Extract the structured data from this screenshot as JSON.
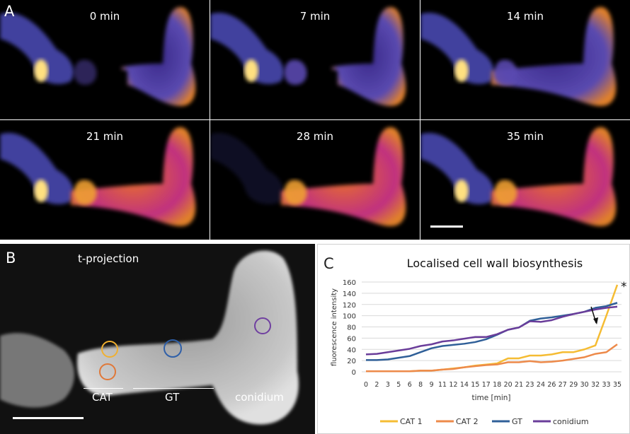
{
  "panel_a": {
    "label": "A",
    "frames": [
      "0 min",
      "7 min",
      "14 min",
      "21 min",
      "28 min",
      "35 min"
    ]
  },
  "panel_b": {
    "label": "B",
    "title": "t-projection",
    "region_labels": {
      "cat": "CAT",
      "gt": "GT",
      "conidium": "conidium"
    },
    "circle_colors": {
      "cat1": "#f0b030",
      "cat2": "#e07838",
      "gt": "#3060a8",
      "conidium": "#7040a0"
    }
  },
  "chart_data": {
    "type": "line",
    "panel_label": "C",
    "title": "Localised cell wall biosynthesis",
    "xlabel": "time [min]",
    "ylabel": "fluorescence intensity",
    "ylim": [
      0,
      160
    ],
    "yticks": [
      0,
      20,
      40,
      60,
      80,
      100,
      120,
      140,
      160
    ],
    "x": [
      0,
      2,
      3,
      5,
      6,
      8,
      9,
      11,
      12,
      14,
      15,
      17,
      18,
      20,
      21,
      23,
      24,
      26,
      27,
      29,
      30,
      32,
      33,
      35
    ],
    "xtick_labels": [
      "0",
      "2",
      "3",
      "5",
      "6",
      "8",
      "9",
      "11",
      "12",
      "14",
      "15",
      "17",
      "18",
      "20",
      "21",
      "23",
      "24",
      "26",
      "27",
      "29",
      "30",
      "32",
      "33",
      "35"
    ],
    "grid": true,
    "legend_position": "bottom",
    "annotations": {
      "asterisk": "*",
      "arrow_at_x": 32
    },
    "series": [
      {
        "name": "CAT 1",
        "color": "#f5bc33",
        "values": [
          1,
          1,
          1,
          1,
          1,
          2,
          2,
          4,
          6,
          8,
          11,
          13,
          15,
          24,
          24,
          29,
          29,
          31,
          35,
          35,
          40,
          47,
          100,
          155
        ]
      },
      {
        "name": "CAT 2",
        "color": "#ed8a4a",
        "values": [
          1,
          1,
          1,
          1,
          1,
          2,
          2,
          4,
          5,
          8,
          10,
          12,
          13,
          17,
          17,
          19,
          17,
          18,
          20,
          23,
          26,
          32,
          35,
          49
        ]
      },
      {
        "name": "GT",
        "color": "#2f5f98",
        "values": [
          21,
          21,
          22,
          25,
          28,
          35,
          42,
          46,
          48,
          50,
          53,
          58,
          66,
          75,
          79,
          91,
          95,
          97,
          100,
          103,
          107,
          114,
          117,
          123
        ]
      },
      {
        "name": "conidium",
        "color": "#6a3d9a",
        "values": [
          31,
          32,
          35,
          38,
          41,
          46,
          49,
          54,
          56,
          59,
          62,
          62,
          67,
          75,
          79,
          90,
          89,
          92,
          98,
          103,
          107,
          111,
          114,
          116
        ]
      }
    ]
  }
}
